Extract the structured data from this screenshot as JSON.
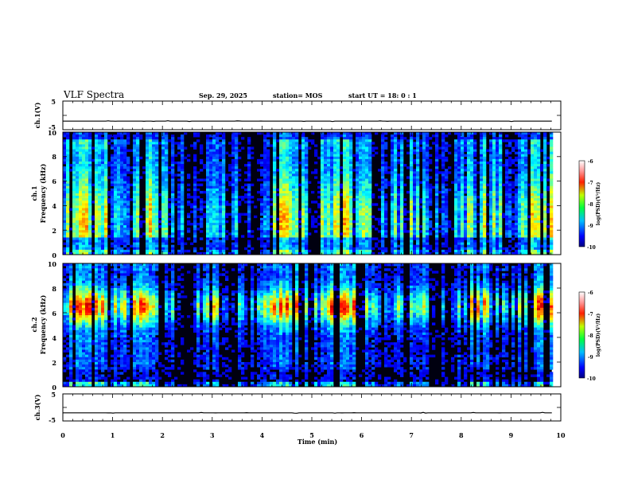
{
  "chart_data": {
    "type": "heatmap",
    "title": "VLF Spectra",
    "date": "Sep. 29, 2025",
    "station": "station= MOS",
    "start": "start  UT =   18: 0  : 1",
    "xlabel": "Time  (min)",
    "xlim": [
      0,
      10
    ],
    "x_ticks": [
      "0",
      "1",
      "2",
      "3",
      "4",
      "5",
      "6",
      "7",
      "8",
      "9",
      "10"
    ],
    "data_end_min": 9.82,
    "panels": [
      {
        "id": "ch1-waveform",
        "type": "line",
        "ylabel": "ch.1(V)",
        "ylim": [
          -5,
          5
        ],
        "y_ticks": [
          "5",
          "-5"
        ],
        "level": -2
      },
      {
        "id": "ch1-spectrogram",
        "type": "heatmap",
        "ylabel_top": "ch.1",
        "ylabel": "Frequency  (kHz)",
        "ylim": [
          0,
          10
        ],
        "y_ticks": [
          "0",
          "2",
          "4",
          "6",
          "8",
          "10"
        ],
        "colorbar": {
          "label": "log(PSD)(V²/Hz)",
          "range": [
            -10,
            -6
          ],
          "ticks": [
            "-6",
            "-7",
            "-8",
            "-9",
            "-10"
          ]
        }
      },
      {
        "id": "ch2-spectrogram",
        "type": "heatmap",
        "ylabel_top": "ch.2",
        "ylabel": "Frequency  (kHz)",
        "ylim": [
          0,
          10
        ],
        "y_ticks": [
          "0",
          "2",
          "4",
          "6",
          "8",
          "10"
        ],
        "colorbar": {
          "label": "log(PSD)(V²/Hz)",
          "range": [
            -10,
            -6
          ],
          "ticks": [
            "-6",
            "-7",
            "-8",
            "-9",
            "-10"
          ]
        }
      },
      {
        "id": "ch3-waveform",
        "type": "line",
        "ylabel": "ch.3(V)",
        "ylim": [
          -5,
          5
        ],
        "y_ticks": [
          "5",
          "-5"
        ],
        "level": -2
      }
    ]
  }
}
